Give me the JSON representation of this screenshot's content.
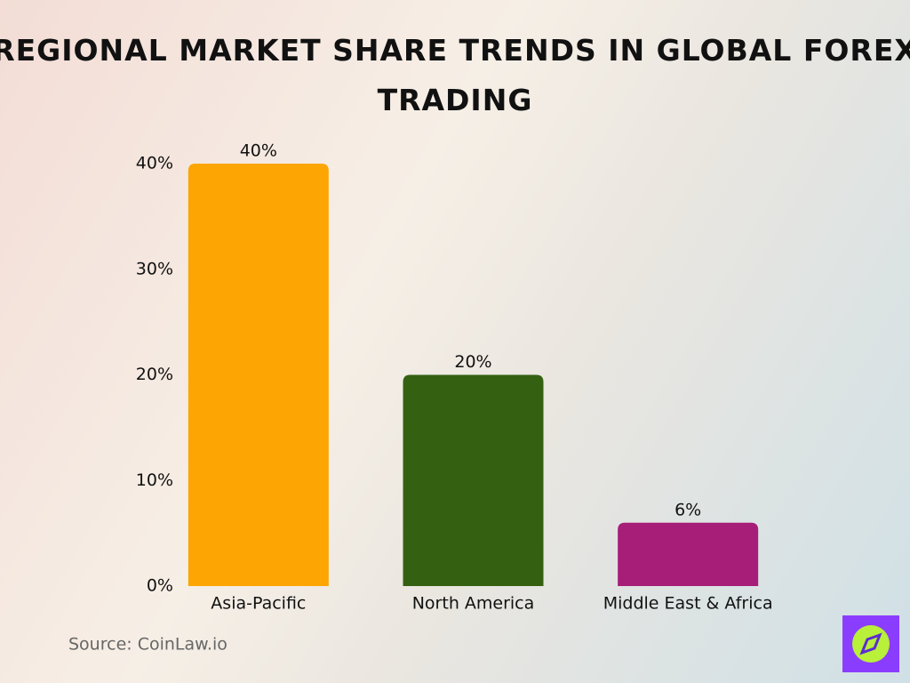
{
  "chart_data": {
    "type": "bar",
    "title": "Regional Market Share Trends in Global Forex Trading",
    "categories": [
      "Asia-Pacific",
      "North America",
      "Middle East & Africa"
    ],
    "values": [
      40,
      20,
      6
    ],
    "value_labels": [
      "40%",
      "20%",
      "6%"
    ],
    "colors": [
      "#fca503",
      "#336111",
      "#a61e78"
    ],
    "ylim": [
      0,
      40
    ],
    "yticks": [
      {
        "value": 0,
        "label": "0%"
      },
      {
        "value": 10,
        "label": "10%"
      },
      {
        "value": 20,
        "label": "20%"
      },
      {
        "value": 30,
        "label": "30%"
      },
      {
        "value": 40,
        "label": "40%"
      }
    ],
    "grid": false,
    "source": "Source: CoinLaw.io"
  }
}
